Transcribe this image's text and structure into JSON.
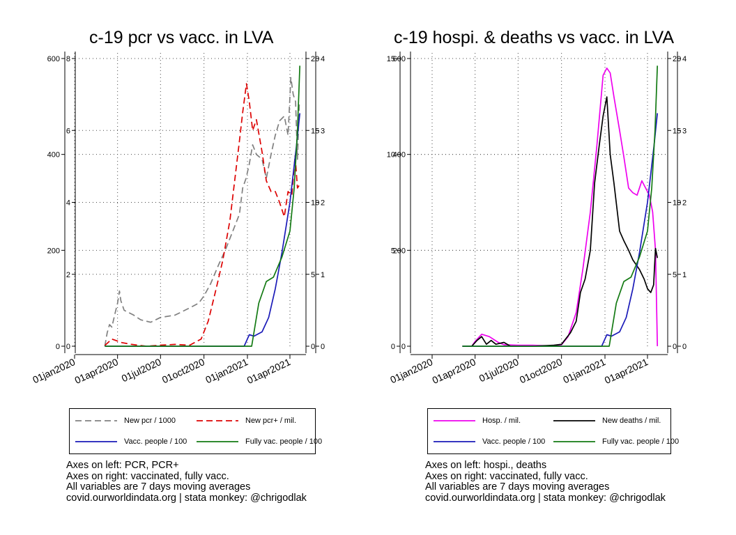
{
  "chart_data": [
    {
      "type": "line",
      "title": "c-19 pcr vs vacc. in LVA",
      "x_ticks": [
        "01jan2020",
        "01apr2020",
        "01jul2020",
        "01oct2020",
        "01jan2021",
        "01apr2021"
      ],
      "y_axes": {
        "left_outer": {
          "ticks": [
            "0",
            "200",
            "400",
            "600"
          ],
          "range": [
            0,
            600
          ]
        },
        "left_inner": {
          "ticks": [
            "0",
            "2",
            "4",
            "6",
            "8"
          ],
          "range": [
            0,
            8
          ]
        },
        "right_inner": {
          "ticks": [
            "0",
            "5",
            "10",
            "15",
            "20"
          ],
          "range": [
            0,
            20
          ]
        },
        "right_outer": {
          "ticks": [
            "0",
            "1",
            "2",
            "3",
            "4"
          ],
          "range": [
            0,
            4
          ]
        }
      },
      "grid": true,
      "legend_placement": "below",
      "series": [
        {
          "name": "New pcr / 1000",
          "color": "#808080",
          "dash": true,
          "axis": "left_outer",
          "points": [
            [
              "2020-03-05",
              0
            ],
            [
              "2020-03-10",
              28
            ],
            [
              "2020-03-15",
              45
            ],
            [
              "2020-03-20",
              40
            ],
            [
              "2020-03-27",
              70
            ],
            [
              "2020-04-01",
              90
            ],
            [
              "2020-04-05",
              115
            ],
            [
              "2020-04-08",
              95
            ],
            [
              "2020-04-15",
              75
            ],
            [
              "2020-04-25",
              70
            ],
            [
              "2020-05-05",
              65
            ],
            [
              "2020-05-20",
              55
            ],
            [
              "2020-06-10",
              50
            ],
            [
              "2020-07-01",
              60
            ],
            [
              "2020-08-01",
              65
            ],
            [
              "2020-09-01",
              80
            ],
            [
              "2020-09-20",
              90
            ],
            [
              "2020-10-01",
              105
            ],
            [
              "2020-10-15",
              130
            ],
            [
              "2020-11-01",
              170
            ],
            [
              "2020-11-15",
              200
            ],
            [
              "2020-12-01",
              240
            ],
            [
              "2020-12-15",
              275
            ],
            [
              "2020-12-22",
              330
            ],
            [
              "2020-12-29",
              350
            ],
            [
              "2021-01-05",
              380
            ],
            [
              "2021-01-12",
              420
            ],
            [
              "2021-01-20",
              400
            ],
            [
              "2021-02-01",
              390
            ],
            [
              "2021-02-10",
              350
            ],
            [
              "2021-02-20",
              400
            ],
            [
              "2021-03-01",
              440
            ],
            [
              "2021-03-10",
              470
            ],
            [
              "2021-03-20",
              480
            ],
            [
              "2021-03-28",
              440
            ],
            [
              "2021-04-03",
              560
            ],
            [
              "2021-04-08",
              525
            ],
            [
              "2021-04-13",
              510
            ],
            [
              "2021-04-17",
              390
            ],
            [
              "2021-04-21",
              510
            ]
          ]
        },
        {
          "name": "New pcr+ / mil.",
          "color": "#dd0000",
          "dash": true,
          "axis": "left_inner",
          "points": [
            [
              "2020-03-05",
              0.02
            ],
            [
              "2020-03-20",
              0.2
            ],
            [
              "2020-04-10",
              0.1
            ],
            [
              "2020-05-01",
              0.05
            ],
            [
              "2020-06-01",
              0.0
            ],
            [
              "2020-07-01",
              0.03
            ],
            [
              "2020-08-01",
              0.05
            ],
            [
              "2020-09-01",
              0.03
            ],
            [
              "2020-09-25",
              0.2
            ],
            [
              "2020-10-10",
              0.7
            ],
            [
              "2020-10-25",
              1.5
            ],
            [
              "2020-11-10",
              2.4
            ],
            [
              "2020-11-25",
              3.5
            ],
            [
              "2020-12-05",
              4.6
            ],
            [
              "2020-12-15",
              5.7
            ],
            [
              "2020-12-22",
              6.5
            ],
            [
              "2020-12-30",
              7.3
            ],
            [
              "2021-01-05",
              6.8
            ],
            [
              "2021-01-12",
              6.0
            ],
            [
              "2021-01-20",
              6.3
            ],
            [
              "2021-02-01",
              5.4
            ],
            [
              "2021-02-10",
              4.6
            ],
            [
              "2021-02-20",
              4.3
            ],
            [
              "2021-03-01",
              4.3
            ],
            [
              "2021-03-10",
              4.0
            ],
            [
              "2021-03-20",
              3.6
            ],
            [
              "2021-03-28",
              4.3
            ],
            [
              "2021-04-05",
              4.2
            ],
            [
              "2021-04-12",
              5.3
            ],
            [
              "2021-04-17",
              4.4
            ],
            [
              "2021-04-22",
              4.5
            ]
          ]
        },
        {
          "name": "Vacc. people / 100",
          "color": "#1a1ab8",
          "dash": false,
          "axis": "right_inner",
          "points": [
            [
              "2020-03-05",
              0
            ],
            [
              "2020-12-25",
              0
            ],
            [
              "2021-01-05",
              0.8
            ],
            [
              "2021-01-15",
              0.7
            ],
            [
              "2021-02-01",
              1.0
            ],
            [
              "2021-02-15",
              2.0
            ],
            [
              "2021-03-01",
              4.0
            ],
            [
              "2021-03-15",
              6.5
            ],
            [
              "2021-04-01",
              10.0
            ],
            [
              "2021-04-15",
              14.0
            ],
            [
              "2021-04-22",
              16.2
            ]
          ]
        },
        {
          "name": "Fully vac. people / 100",
          "color": "#137a13",
          "dash": false,
          "axis": "right_inner",
          "points": [
            [
              "2020-03-05",
              0
            ],
            [
              "2021-01-10",
              0
            ],
            [
              "2021-01-25",
              3.0
            ],
            [
              "2021-02-10",
              4.5
            ],
            [
              "2021-02-25",
              4.8
            ],
            [
              "2021-03-15",
              6.2
            ],
            [
              "2021-04-01",
              8.0
            ],
            [
              "2021-04-10",
              11.0
            ],
            [
              "2021-04-17",
              15.0
            ],
            [
              "2021-04-22",
              19.5
            ]
          ]
        }
      ]
    },
    {
      "type": "line",
      "title": "c-19 hospi. & deaths vs vacc. in LVA",
      "x_ticks": [
        "01jan2020",
        "01apr2020",
        "01jul2020",
        "01oct2020",
        "01jan2021",
        "01apr2021"
      ],
      "y_axes": {
        "left_outer": {
          "ticks": [
            "0",
            "5",
            "10",
            "15"
          ],
          "range": [
            0,
            15
          ]
        },
        "left_inner": {
          "ticks": [
            "0",
            "200",
            "400",
            "600"
          ],
          "range": [
            0,
            600
          ]
        },
        "right_inner": {
          "ticks": [
            "0",
            "5",
            "10",
            "15",
            "20"
          ],
          "range": [
            0,
            20
          ]
        },
        "right_outer": {
          "ticks": [
            "0",
            "1",
            "2",
            "3",
            "4"
          ],
          "range": [
            0,
            4
          ]
        }
      },
      "grid": true,
      "legend_placement": "below",
      "series": [
        {
          "name": "Hosp. / mil.",
          "color": "#ee00ee",
          "dash": false,
          "axis": "left_inner",
          "points": [
            [
              "2020-03-05",
              0
            ],
            [
              "2020-03-25",
              0
            ],
            [
              "2020-04-01",
              10
            ],
            [
              "2020-04-15",
              25
            ],
            [
              "2020-05-01",
              20
            ],
            [
              "2020-05-20",
              8
            ],
            [
              "2020-06-01",
              3
            ],
            [
              "2020-07-01",
              2
            ],
            [
              "2020-08-01",
              2
            ],
            [
              "2020-09-01",
              1
            ],
            [
              "2020-10-01",
              3
            ],
            [
              "2020-10-15",
              20
            ],
            [
              "2020-11-01",
              70
            ],
            [
              "2020-11-15",
              160
            ],
            [
              "2020-12-01",
              280
            ],
            [
              "2020-12-15",
              420
            ],
            [
              "2020-12-28",
              565
            ],
            [
              "2021-01-05",
              580
            ],
            [
              "2021-01-12",
              570
            ],
            [
              "2021-01-20",
              520
            ],
            [
              "2021-02-01",
              450
            ],
            [
              "2021-02-10",
              395
            ],
            [
              "2021-02-20",
              330
            ],
            [
              "2021-03-01",
              320
            ],
            [
              "2021-03-10",
              315
            ],
            [
              "2021-03-20",
              345
            ],
            [
              "2021-03-28",
              330
            ],
            [
              "2021-04-05",
              315
            ],
            [
              "2021-04-12",
              280
            ],
            [
              "2021-04-18",
              200
            ],
            [
              "2021-04-22",
              0
            ]
          ]
        },
        {
          "name": "New deaths / mil.",
          "color": "#000000",
          "dash": false,
          "axis": "left_outer",
          "points": [
            [
              "2020-03-05",
              0
            ],
            [
              "2020-03-25",
              0
            ],
            [
              "2020-04-05",
              0.3
            ],
            [
              "2020-04-15",
              0.5
            ],
            [
              "2020-04-25",
              0.1
            ],
            [
              "2020-05-05",
              0.3
            ],
            [
              "2020-05-15",
              0.1
            ],
            [
              "2020-06-01",
              0.2
            ],
            [
              "2020-06-15",
              0
            ],
            [
              "2020-08-01",
              0
            ],
            [
              "2020-09-15",
              0.05
            ],
            [
              "2020-10-01",
              0.1
            ],
            [
              "2020-10-20",
              0.7
            ],
            [
              "2020-11-01",
              1.3
            ],
            [
              "2020-11-10",
              2.8
            ],
            [
              "2020-11-20",
              3.5
            ],
            [
              "2020-12-01",
              5.0
            ],
            [
              "2020-12-10",
              8.5
            ],
            [
              "2020-12-20",
              10.5
            ],
            [
              "2020-12-28",
              12.0
            ],
            [
              "2021-01-05",
              13.0
            ],
            [
              "2021-01-12",
              10.0
            ],
            [
              "2021-01-20",
              8.5
            ],
            [
              "2021-02-01",
              6.0
            ],
            [
              "2021-02-10",
              5.5
            ],
            [
              "2021-02-20",
              5.0
            ],
            [
              "2021-03-01",
              4.5
            ],
            [
              "2021-03-15",
              4.0
            ],
            [
              "2021-03-25",
              3.5
            ],
            [
              "2021-04-01",
              3.0
            ],
            [
              "2021-04-08",
              2.8
            ],
            [
              "2021-04-14",
              3.2
            ],
            [
              "2021-04-18",
              5.1
            ],
            [
              "2021-04-22",
              4.6
            ]
          ]
        },
        {
          "name": "Vacc. people / 100",
          "color": "#1a1ab8",
          "dash": false,
          "axis": "right_inner",
          "points": [
            [
              "2020-03-05",
              0
            ],
            [
              "2020-12-25",
              0
            ],
            [
              "2021-01-05",
              0.8
            ],
            [
              "2021-01-15",
              0.7
            ],
            [
              "2021-02-01",
              1.0
            ],
            [
              "2021-02-15",
              2.0
            ],
            [
              "2021-03-01",
              4.0
            ],
            [
              "2021-03-15",
              6.5
            ],
            [
              "2021-04-01",
              10.0
            ],
            [
              "2021-04-15",
              14.0
            ],
            [
              "2021-04-22",
              16.2
            ]
          ]
        },
        {
          "name": "Fully vac. people / 100",
          "color": "#137a13",
          "dash": false,
          "axis": "right_inner",
          "points": [
            [
              "2020-03-05",
              0
            ],
            [
              "2021-01-10",
              0
            ],
            [
              "2021-01-25",
              3.0
            ],
            [
              "2021-02-10",
              4.5
            ],
            [
              "2021-02-25",
              4.8
            ],
            [
              "2021-03-15",
              6.2
            ],
            [
              "2021-04-01",
              8.0
            ],
            [
              "2021-04-10",
              11.0
            ],
            [
              "2021-04-17",
              15.0
            ],
            [
              "2021-04-22",
              19.5
            ]
          ]
        }
      ]
    }
  ],
  "legends": [
    {
      "items": [
        {
          "label": "New pcr / 1000",
          "color": "#808080",
          "dash": true
        },
        {
          "label": "New pcr+ / mil.",
          "color": "#dd0000",
          "dash": true
        },
        {
          "label": "Vacc. people / 100",
          "color": "#1a1ab8",
          "dash": false
        },
        {
          "label": "Fully vac. people / 100",
          "color": "#137a13",
          "dash": false
        }
      ]
    },
    {
      "items": [
        {
          "label": "Hosp. / mil.",
          "color": "#ee00ee",
          "dash": false
        },
        {
          "label": "New deaths / mil.",
          "color": "#000000",
          "dash": false
        },
        {
          "label": "Vacc. people / 100",
          "color": "#1a1ab8",
          "dash": false
        },
        {
          "label": "Fully vac. people / 100",
          "color": "#137a13",
          "dash": false
        }
      ]
    }
  ],
  "notes": [
    [
      "Axes on left: PCR, PCR+",
      "Axes on right: vaccinated, fully vacc.",
      "All variables are 7 days moving averages",
      "covid.ourworldindata.org | stata monkey: @chrigodlak"
    ],
    [
      "Axes on left: hospi., deaths",
      "Axes on right: vaccinated, fully vacc.",
      "All variables are 7 days moving averages",
      "covid.ourworldindata.org | stata monkey: @chrigodlak"
    ]
  ]
}
